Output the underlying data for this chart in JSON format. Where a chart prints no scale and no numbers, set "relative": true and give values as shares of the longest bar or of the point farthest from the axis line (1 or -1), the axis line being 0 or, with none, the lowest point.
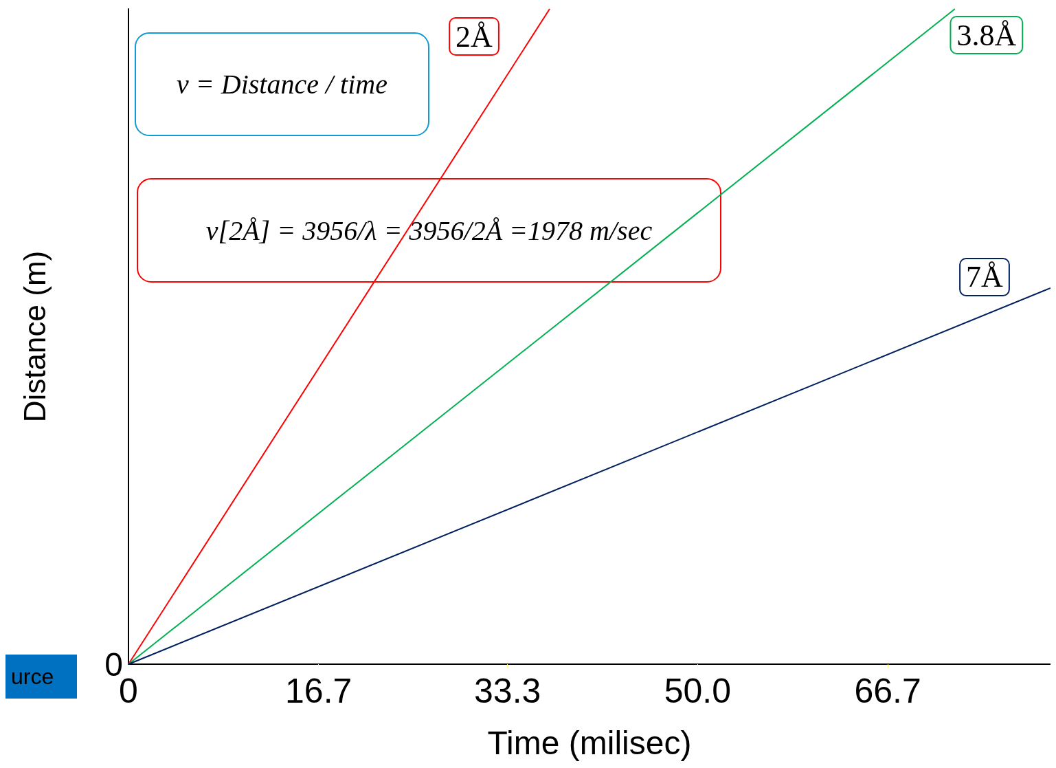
{
  "chart_data": {
    "type": "line",
    "relative": true,
    "xlabel": "Time (milisec)",
    "ylabel": "Distance (m)",
    "xlim": [
      0,
      81
    ],
    "xticks": [
      0,
      16.7,
      33.3,
      {
        "value": 50,
        "label": "50.0"
      },
      66.7
    ],
    "series": [
      {
        "name": "2Å",
        "color": "#ff0000",
        "x": [
          0,
          37.0
        ],
        "values": [
          0,
          1
        ]
      },
      {
        "name": "3.8Å",
        "color": "#00b050",
        "x": [
          0,
          72.6
        ],
        "values": [
          0,
          1
        ]
      },
      {
        "name": "7Å",
        "color": "#002060",
        "x": [
          0,
          81
        ],
        "values": [
          0,
          0.574
        ]
      }
    ],
    "annotations": [
      "v = Distance / time",
      "v[2Å] = 3956/λ = 3956/2Å =1978 m/sec",
      "0",
      "urce"
    ],
    "grid": false,
    "legend": false,
    "marker": "none",
    "line_style": "solid"
  }
}
